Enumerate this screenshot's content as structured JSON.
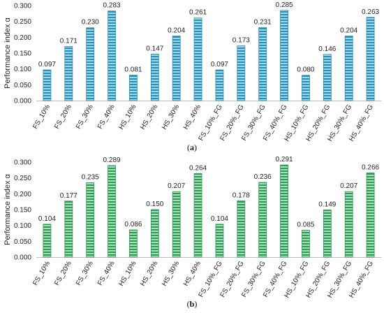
{
  "panels": [
    {
      "caption": "a",
      "color_dark": "#2b8fb3",
      "color_light": "#9fd8ec",
      "chart_data": {
        "type": "bar",
        "categories": [
          "FS_10%",
          "FS_20%",
          "FS_30%",
          "FS_40%",
          "HS_10%",
          "HS_20%",
          "HS_30%",
          "HS_40%",
          "FS_10%_FG",
          "FS_20%_FG",
          "FS_30%_FG",
          "FS_40%_FG",
          "HS_10%_FG",
          "HS_20%_FG",
          "HS_30%_FG",
          "HS_40%_FG"
        ],
        "values": [
          0.097,
          0.171,
          0.23,
          0.283,
          0.081,
          0.147,
          0.204,
          0.261,
          0.097,
          0.173,
          0.231,
          0.285,
          0.08,
          0.146,
          0.204,
          0.263
        ],
        "value_labels": [
          "0.097",
          "0.171",
          "0.230",
          "0.283",
          "0.081",
          "0.147",
          "0.204",
          "0.261",
          "0.097",
          "0.173",
          "0.231",
          "0.285",
          "0.080",
          "0.146",
          "0.204",
          "0.263"
        ],
        "ylabel": "Performance index α",
        "ylim": [
          0,
          0.3
        ],
        "yticks": [
          "0.000",
          "0.050",
          "0.100",
          "0.150",
          "0.200",
          "0.250",
          "0.300"
        ],
        "grid": false,
        "legend": "none"
      }
    },
    {
      "caption": "b",
      "color_dark": "#2e9a55",
      "color_light": "#a6dfb8",
      "chart_data": {
        "type": "bar",
        "categories": [
          "FS_10%",
          "FS_20%",
          "FS_30%",
          "FS_40%",
          "HS_10%",
          "HS_20%",
          "HS_30%",
          "HS_40%",
          "FS_10%_FG",
          "FS_20%_FG",
          "FS_30%_FG",
          "FS_40%_FG",
          "HS_10%_FG",
          "HS_20%_FG",
          "HS_30%_FG",
          "HS_40%_FG"
        ],
        "values": [
          0.104,
          0.177,
          0.235,
          0.289,
          0.086,
          0.15,
          0.207,
          0.264,
          0.104,
          0.178,
          0.236,
          0.291,
          0.085,
          0.149,
          0.207,
          0.266
        ],
        "value_labels": [
          "0.104",
          "0.177",
          "0.235",
          "0.289",
          "0.086",
          "0.150",
          "0.207",
          "0.264",
          "0.104",
          "0.178",
          "0.236",
          "0.291",
          "0.085",
          "0.149",
          "0.207",
          "0.266"
        ],
        "ylabel": "Performance index α",
        "ylim": [
          0,
          0.3
        ],
        "yticks": [
          "0.000",
          "0.050",
          "0.100",
          "0.150",
          "0.200",
          "0.250",
          "0.300"
        ],
        "grid": false,
        "legend": "none"
      }
    }
  ]
}
